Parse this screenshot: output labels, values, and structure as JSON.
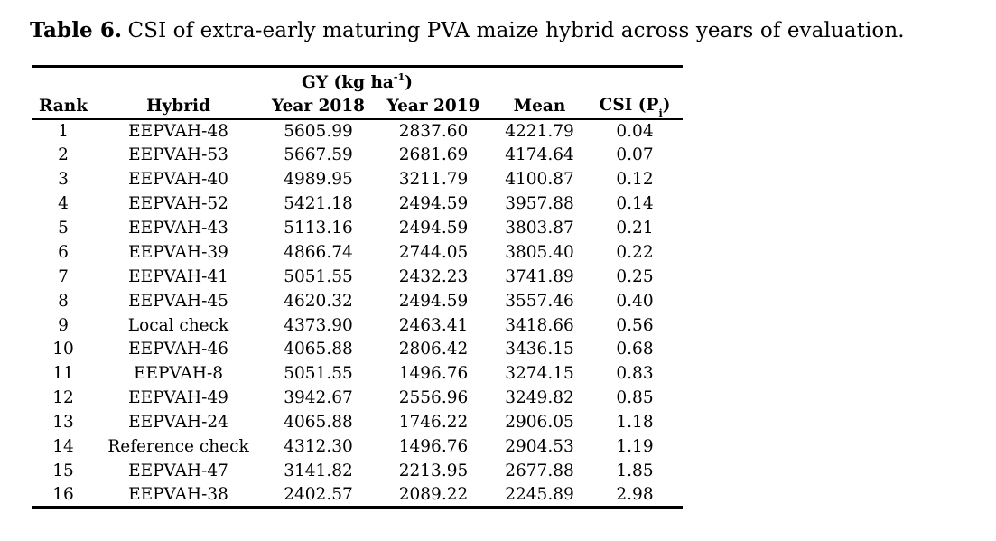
{
  "caption": {
    "label": "Table 6.",
    "text": "CSI of extra-early maturing PVA maize hybrid across years of evaluation."
  },
  "table": {
    "group_header": {
      "main": "GY (kg ha",
      "sup": "-1",
      "close": ")"
    },
    "columns": [
      "Rank",
      "Hybrid",
      "Year 2018",
      "Year 2019",
      "Mean"
    ],
    "csi_header": {
      "main": "CSI (P",
      "sub": "i",
      "close": ")"
    },
    "rows": [
      [
        "1",
        "EEPVAH-48",
        "5605.99",
        "2837.60",
        "4221.79",
        "0.04"
      ],
      [
        "2",
        "EEPVAH-53",
        "5667.59",
        "2681.69",
        "4174.64",
        "0.07"
      ],
      [
        "3",
        "EEPVAH-40",
        "4989.95",
        "3211.79",
        "4100.87",
        "0.12"
      ],
      [
        "4",
        "EEPVAH-52",
        "5421.18",
        "2494.59",
        "3957.88",
        "0.14"
      ],
      [
        "5",
        "EEPVAH-43",
        "5113.16",
        "2494.59",
        "3803.87",
        "0.21"
      ],
      [
        "6",
        "EEPVAH-39",
        "4866.74",
        "2744.05",
        "3805.40",
        "0.22"
      ],
      [
        "7",
        "EEPVAH-41",
        "5051.55",
        "2432.23",
        "3741.89",
        "0.25"
      ],
      [
        "8",
        "EEPVAH-45",
        "4620.32",
        "2494.59",
        "3557.46",
        "0.40"
      ],
      [
        "9",
        "Local check",
        "4373.90",
        "2463.41",
        "3418.66",
        "0.56"
      ],
      [
        "10",
        "EEPVAH-46",
        "4065.88",
        "2806.42",
        "3436.15",
        "0.68"
      ],
      [
        "11",
        "EEPVAH-8",
        "5051.55",
        "1496.76",
        "3274.15",
        "0.83"
      ],
      [
        "12",
        "EEPVAH-49",
        "3942.67",
        "2556.96",
        "3249.82",
        "0.85"
      ],
      [
        "13",
        "EEPVAH-24",
        "4065.88",
        "1746.22",
        "2906.05",
        "1.18"
      ],
      [
        "14",
        "Reference check",
        "4312.30",
        "1496.76",
        "2904.53",
        "1.19"
      ],
      [
        "15",
        "EEPVAH-47",
        "3141.82",
        "2213.95",
        "2677.88",
        "1.85"
      ],
      [
        "16",
        "EEPVAH-38",
        "2402.57",
        "2089.22",
        "2245.89",
        "2.98"
      ]
    ]
  }
}
